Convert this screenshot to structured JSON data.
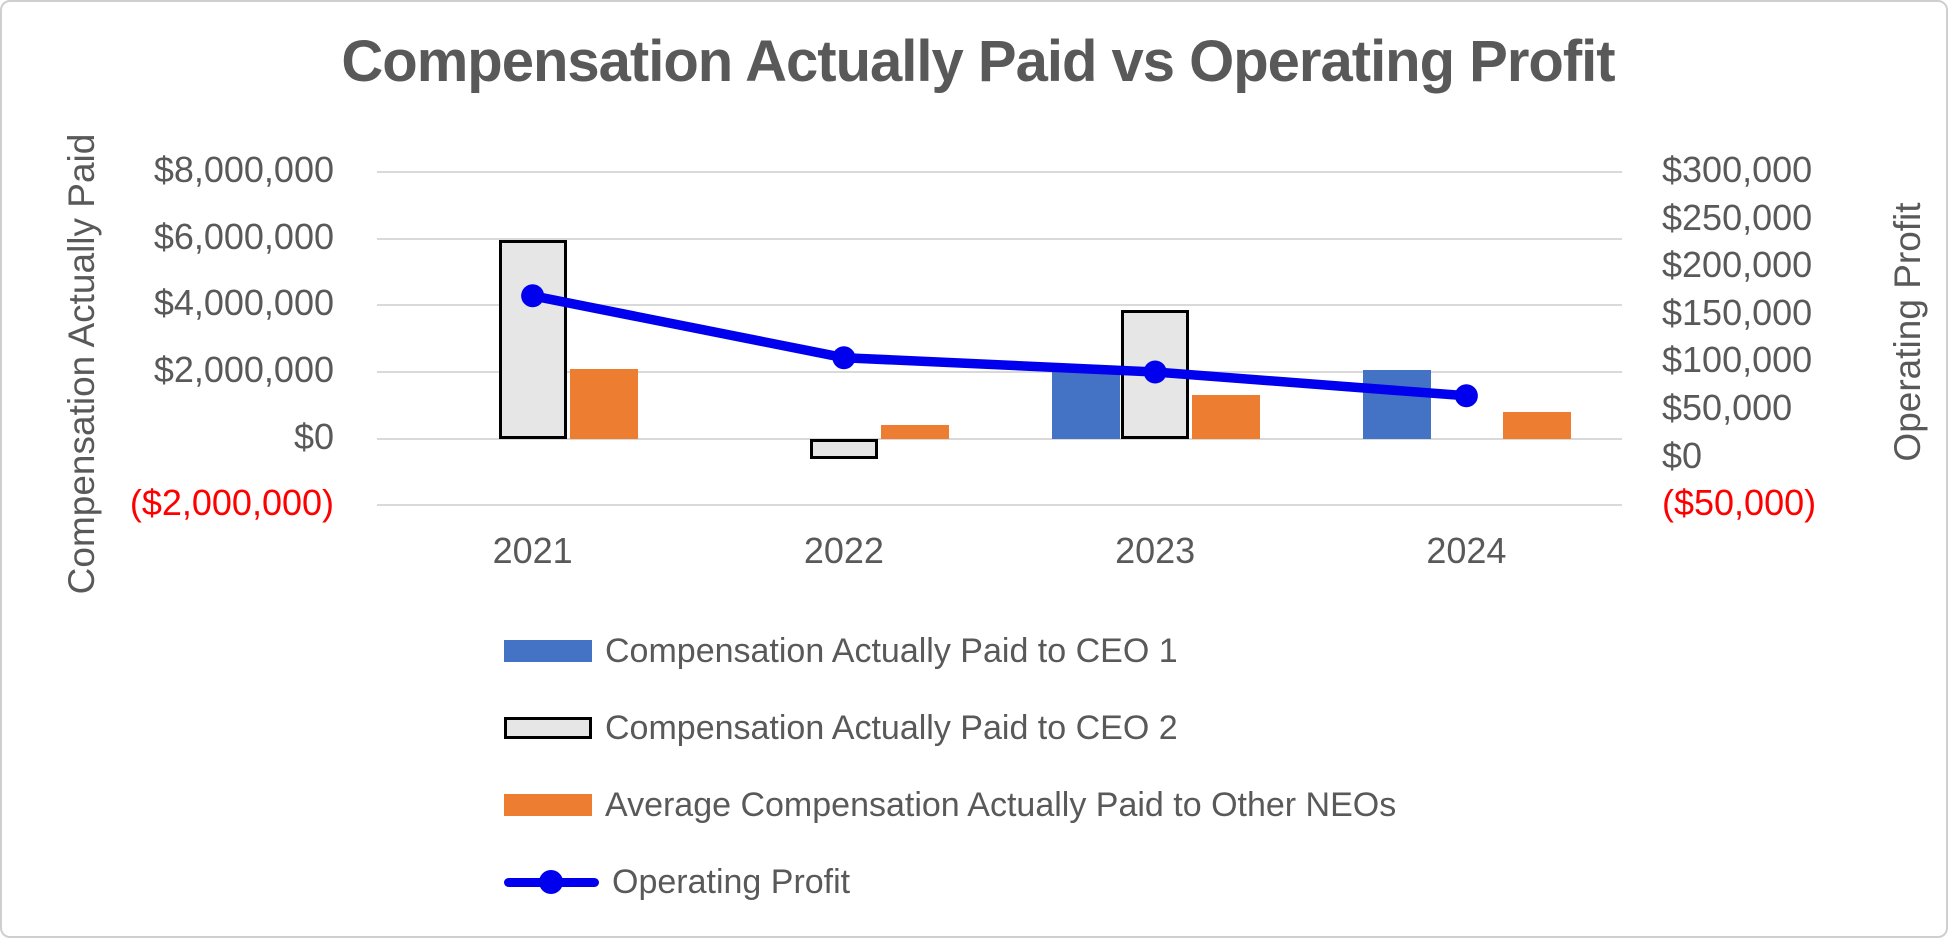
{
  "title": "Compensation Actually Paid vs Operating Profit",
  "left_axis": {
    "title": "Compensation Actually Paid",
    "tick_labels": [
      "$8,000,000",
      "$6,000,000",
      "$4,000,000",
      "$2,000,000",
      "$0",
      "($2,000,000)"
    ]
  },
  "right_axis": {
    "title": "Operating Profit",
    "tick_labels": [
      "$300,000",
      "$250,000",
      "$200,000",
      "$150,000",
      "$100,000",
      "$50,000",
      "$0",
      "($50,000)"
    ]
  },
  "x_axis": {
    "labels": [
      "2021",
      "2022",
      "2023",
      "2024"
    ]
  },
  "legend": [
    {
      "label": "Compensation Actually Paid to CEO 1",
      "swatch": "bar",
      "color": "#4472C4"
    },
    {
      "label": "Compensation Actually Paid to CEO 2",
      "swatch": "bar-outlined",
      "color": "#E7E6E6",
      "border": "#000000"
    },
    {
      "label": "Average Compensation Actually Paid to Other NEOs",
      "swatch": "bar",
      "color": "#ED7D31"
    },
    {
      "label": "Operating Profit",
      "swatch": "line-marker",
      "color": "#0000EE"
    }
  ],
  "chart_data": {
    "type": "bar",
    "subtype": "combo-bar-line-dual-axis",
    "title": "Compensation Actually Paid vs Operating Profit",
    "categories": [
      "2021",
      "2022",
      "2023",
      "2024"
    ],
    "series": [
      {
        "name": "Compensation Actually Paid to CEO 1",
        "chart_type": "bar",
        "axis": "left",
        "color": "#4472C4",
        "values": [
          null,
          null,
          2100000,
          2050000
        ]
      },
      {
        "name": "Compensation Actually Paid to CEO 2",
        "chart_type": "bar",
        "axis": "left",
        "color": "#E7E6E6",
        "border_color": "#000000",
        "values": [
          5950000,
          -600000,
          3850000,
          null
        ]
      },
      {
        "name": "Average Compensation Actually Paid to Other NEOs",
        "chart_type": "bar",
        "axis": "left",
        "color": "#ED7D31",
        "values": [
          2100000,
          400000,
          1300000,
          800000
        ]
      },
      {
        "name": "Operating Profit",
        "chart_type": "line",
        "axis": "right",
        "color": "#0000EE",
        "values": [
          170000,
          105000,
          90000,
          65000
        ]
      }
    ],
    "ylabel_left": "Compensation Actually Paid",
    "ylabel_right": "Operating Profit",
    "left_axis_range": {
      "min": -2000000,
      "max": 8000000,
      "step": 2000000
    },
    "right_axis_range": {
      "min": -50000,
      "max": 300000,
      "step": 50000
    },
    "grid": "horizontal",
    "legend_position": "bottom-left",
    "negative_tick_color": "#FF0000"
  },
  "colors": {
    "text": "#595959",
    "negative_text": "#FF0000",
    "gridline": "#D9D9D9",
    "frame_border": "#D0CECE",
    "background": "#FFFFFF"
  }
}
